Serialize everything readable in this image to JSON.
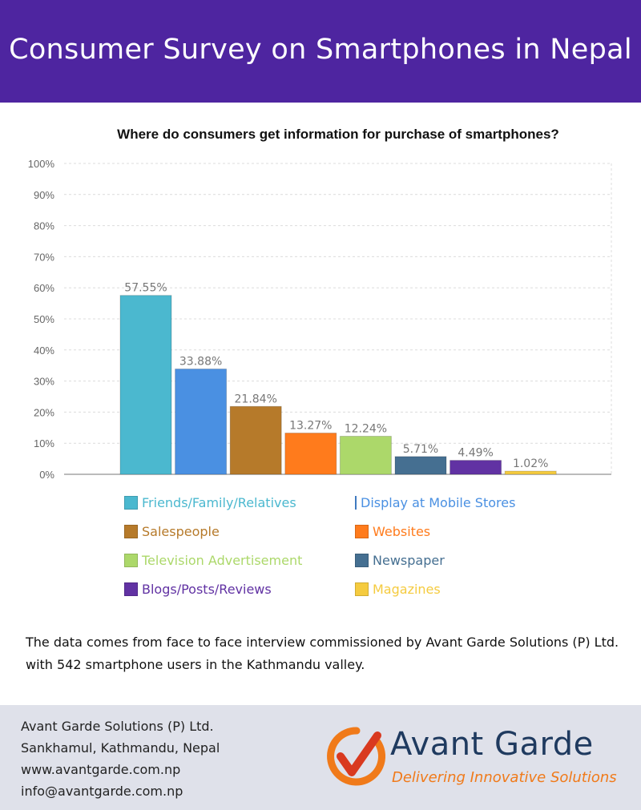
{
  "header": {
    "title": "Consumer Survey on Smartphones in Nepal"
  },
  "chart_data": {
    "type": "bar",
    "title": "Where do consumers get information for purchase of smartphones?",
    "xlabel": "",
    "ylabel": "",
    "ylim": [
      0,
      100
    ],
    "y_ticks": [
      "0%",
      "10%",
      "20%",
      "30%",
      "40%",
      "50%",
      "60%",
      "70%",
      "80%",
      "90%",
      "100%"
    ],
    "grid": true,
    "legend_position": "bottom",
    "categories": [
      "Friends/Family/Relatives",
      "Display at Mobile Stores",
      "Salespeople",
      "Websites",
      "Television Advertisement",
      "Newspaper",
      "Blogs/Posts/Reviews",
      "Magazines"
    ],
    "values": [
      57.55,
      33.88,
      21.84,
      13.27,
      12.24,
      5.71,
      4.49,
      1.02
    ],
    "value_labels": [
      "57.55%",
      "33.88%",
      "21.84%",
      "13.27%",
      "12.24%",
      "5.71%",
      "4.49%",
      "1.02%"
    ],
    "colors": [
      "#4bb8cf",
      "#4a90e2",
      "#b67a2a",
      "#ff7b1c",
      "#acd86a",
      "#456f91",
      "#6132a3",
      "#f5cb3f"
    ],
    "legend_text_colors": [
      "#4bb8cf",
      "#4a90e2",
      "#b67a2a",
      "#ff7b1c",
      "#acd86a",
      "#456f91",
      "#6132a3",
      "#f5cb3f"
    ]
  },
  "note": {
    "line1": "The data comes from face to face interview commissioned by Avant Garde Solutions (P) Ltd.",
    "line2": "with 542 smartphone users in the Kathmandu valley."
  },
  "footer": {
    "company": "Avant Garde Solutions (P) Ltd.",
    "address": "Sankhamul, Kathmandu, Nepal",
    "website": "www.avantgarde.com.np",
    "email": "info@avantgarde.com.np",
    "logo": {
      "name": "Avant Garde",
      "tagline": "Delivering Innovative Solutions",
      "icon": "checkmark-circle-icon",
      "colors": {
        "brand": "#1f3a5f",
        "accent": "#f07a1a",
        "check": "#d9391f"
      }
    }
  },
  "theme": {
    "header_bg": "#4e25a0",
    "footer_bg": "#dfe1ea"
  }
}
